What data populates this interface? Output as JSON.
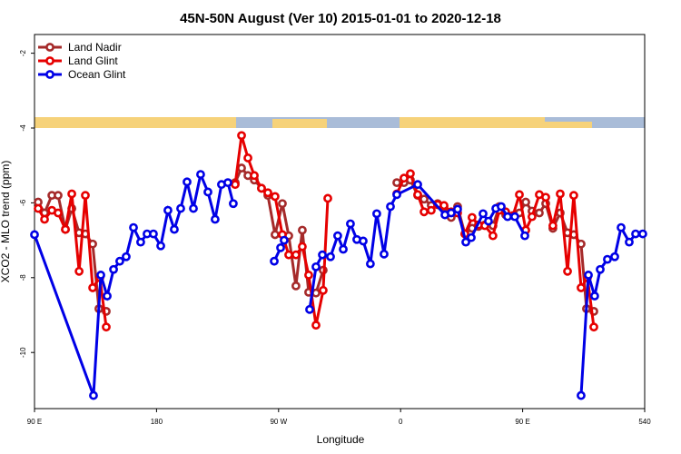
{
  "chart_data": {
    "type": "line",
    "title": "45N-50N August (Ver 10)   2015-01-01 to 2020-12-18",
    "x_label": "Longitude",
    "y_label": "XCO2 - MLO trend (ppm)",
    "xlim": [
      90,
      540
    ],
    "xticks": [
      {
        "value": 90,
        "label": "90 E"
      },
      180,
      {
        "value": 270,
        "label": "90 W"
      },
      {
        "value": 360,
        "label": "0"
      },
      {
        "value": 450,
        "label": "90 E"
      },
      540
    ],
    "ylim": [
      -11.5,
      -1.5
    ],
    "yticks": [
      -2,
      -4,
      -6,
      -8,
      -10
    ],
    "legend": "top-left",
    "series": [
      {
        "name": "Land Nadir",
        "color": "#a52a2a",
        "x": [
          92.7,
          97.4,
          102.8,
          107.4,
          112.8,
          117.5,
          122.9,
          127.5,
          132.9,
          137.5,
          142.9,
          null,
          238,
          242.7,
          247.4,
          252.1,
          257.4,
          262.1,
          267.4,
          272.8,
          277.5,
          282.8,
          287.5,
          292.2,
          297.6,
          302.9,
          null,
          357.2,
          362.5,
          367.2,
          372.6,
          377.3,
          382.6,
          387.3,
          392,
          397.3,
          402,
          407.4,
          412.7,
          417.4,
          422.1,
          428.1,
          432.8,
          437.5,
          442.9,
          447.6,
          452.3,
          456.9,
          462.3,
          467,
          472.3,
          477.7,
          483.1,
          487.7,
          493.1,
          497.1,
          502.5
        ],
        "values": [
          -5.98,
          -6.27,
          -5.8,
          -5.8,
          -6.71,
          -6.15,
          -6.8,
          -6.83,
          -7.1,
          -8.83,
          -8.9,
          null,
          -5.46,
          -5.07,
          -5.27,
          -5.39,
          -5.61,
          -5.8,
          -6.85,
          -6.02,
          -6.88,
          -8.22,
          -6.73,
          -8.39,
          -8.41,
          -7.8,
          null,
          -5.46,
          -5.46,
          -5.39,
          -5.8,
          -5.9,
          -6.07,
          -6.02,
          -6.1,
          -6.39,
          -6.1,
          -6.83,
          -6.68,
          -6.63,
          -6.59,
          -6.61,
          -6.1,
          -6.32,
          -6.34,
          -6.27,
          -5.98,
          -6.22,
          -6.27,
          -6.02,
          -6.68,
          -6.27,
          -6.8,
          -6.85,
          -7.1,
          -8.83,
          -8.9
        ]
      },
      {
        "name": "Land Glint",
        "color": "#e60000",
        "x": [
          92.7,
          97.4,
          102.8,
          107.4,
          112.8,
          117.5,
          122.9,
          127.5,
          132.9,
          138.2,
          142.9,
          null,
          238,
          242.7,
          247.4,
          252.1,
          257.4,
          262.1,
          267.4,
          272.8,
          277.5,
          282.8,
          287.5,
          292.2,
          297.6,
          302.9,
          306.3,
          null,
          357.2,
          362.5,
          367.2,
          372.6,
          377.3,
          382.6,
          387.3,
          392,
          397.3,
          402,
          407.4,
          412.7,
          417.4,
          422.1,
          428.1,
          432.8,
          437.5,
          442.9,
          447.6,
          452.3,
          456.9,
          462.3,
          467,
          472.3,
          477.7,
          483.1,
          487.7,
          493.1,
          497.8,
          502.5
        ],
        "values": [
          -6.15,
          -6.44,
          -6.2,
          -6.27,
          -6.71,
          -5.76,
          -7.83,
          -5.8,
          -8.27,
          -8.0,
          -9.32,
          null,
          -5.51,
          -4.2,
          -4.8,
          -5.27,
          -5.61,
          -5.73,
          -5.83,
          -6.85,
          -7.39,
          -7.39,
          -7.17,
          -7.93,
          -9.27,
          -8.34,
          -5.88,
          null,
          -5.76,
          -5.34,
          -5.22,
          -5.78,
          -6.24,
          -6.2,
          -6.05,
          -6.07,
          -6.24,
          -6.27,
          -6.83,
          -6.39,
          -6.59,
          -6.61,
          -6.88,
          -6.2,
          -6.24,
          -6.34,
          -5.78,
          -6.73,
          -6.37,
          -5.78,
          -5.85,
          -6.61,
          -5.76,
          -7.83,
          -5.8,
          -8.27,
          -8.0,
          -9.32
        ]
      },
      {
        "name": "Ocean Glint",
        "color": "#0000e6",
        "x": [
          90,
          133.5,
          138.9,
          143.6,
          148.3,
          152.9,
          157.6,
          163,
          168.3,
          173,
          177.7,
          183.1,
          188.4,
          193.1,
          197.8,
          202.5,
          207.2,
          212.5,
          217.9,
          223.2,
          227.9,
          232.6,
          236.6,
          null,
          266.8,
          271.5,
          274.1,
          null,
          292.9,
          297.6,
          302.3,
          308.3,
          313.6,
          317.7,
          323,
          327.7,
          332.4,
          337.7,
          342.4,
          347.8,
          352.5,
          357.2,
          372.6,
          392.7,
          397.3,
          402,
          408.1,
          412.1,
          420.8,
          424.8,
          430.2,
          434.2,
          438.9,
          444.2,
          451.6,
          null,
          493.1,
          498.5,
          503.1,
          507.2,
          512.5,
          517.9,
          522.6,
          528.6,
          533.3,
          538.6
        ],
        "values": [
          -6.85,
          -11.15,
          -7.93,
          -8.49,
          -7.78,
          -7.56,
          -7.44,
          -6.66,
          -7.05,
          -6.83,
          -6.83,
          -7.15,
          -6.2,
          -6.71,
          -6.15,
          -5.44,
          -6.15,
          -5.24,
          -5.71,
          -6.44,
          -5.51,
          -5.46,
          -6.02,
          null,
          -7.56,
          -7.2,
          -7.0,
          null,
          -8.85,
          -7.71,
          -7.39,
          -7.44,
          -6.88,
          -7.24,
          -6.56,
          -6.98,
          -7.02,
          -7.63,
          -6.29,
          -7.37,
          -6.1,
          -5.78,
          -5.51,
          -6.32,
          -6.27,
          -6.17,
          -7.05,
          -6.93,
          -6.29,
          -6.49,
          -6.15,
          -6.1,
          -6.37,
          -6.37,
          -6.88,
          null,
          -11.15,
          -7.93,
          -8.49,
          -7.78,
          -7.51,
          -7.44,
          -6.66,
          -7.05,
          -6.83,
          -6.83
        ]
      }
    ]
  }
}
